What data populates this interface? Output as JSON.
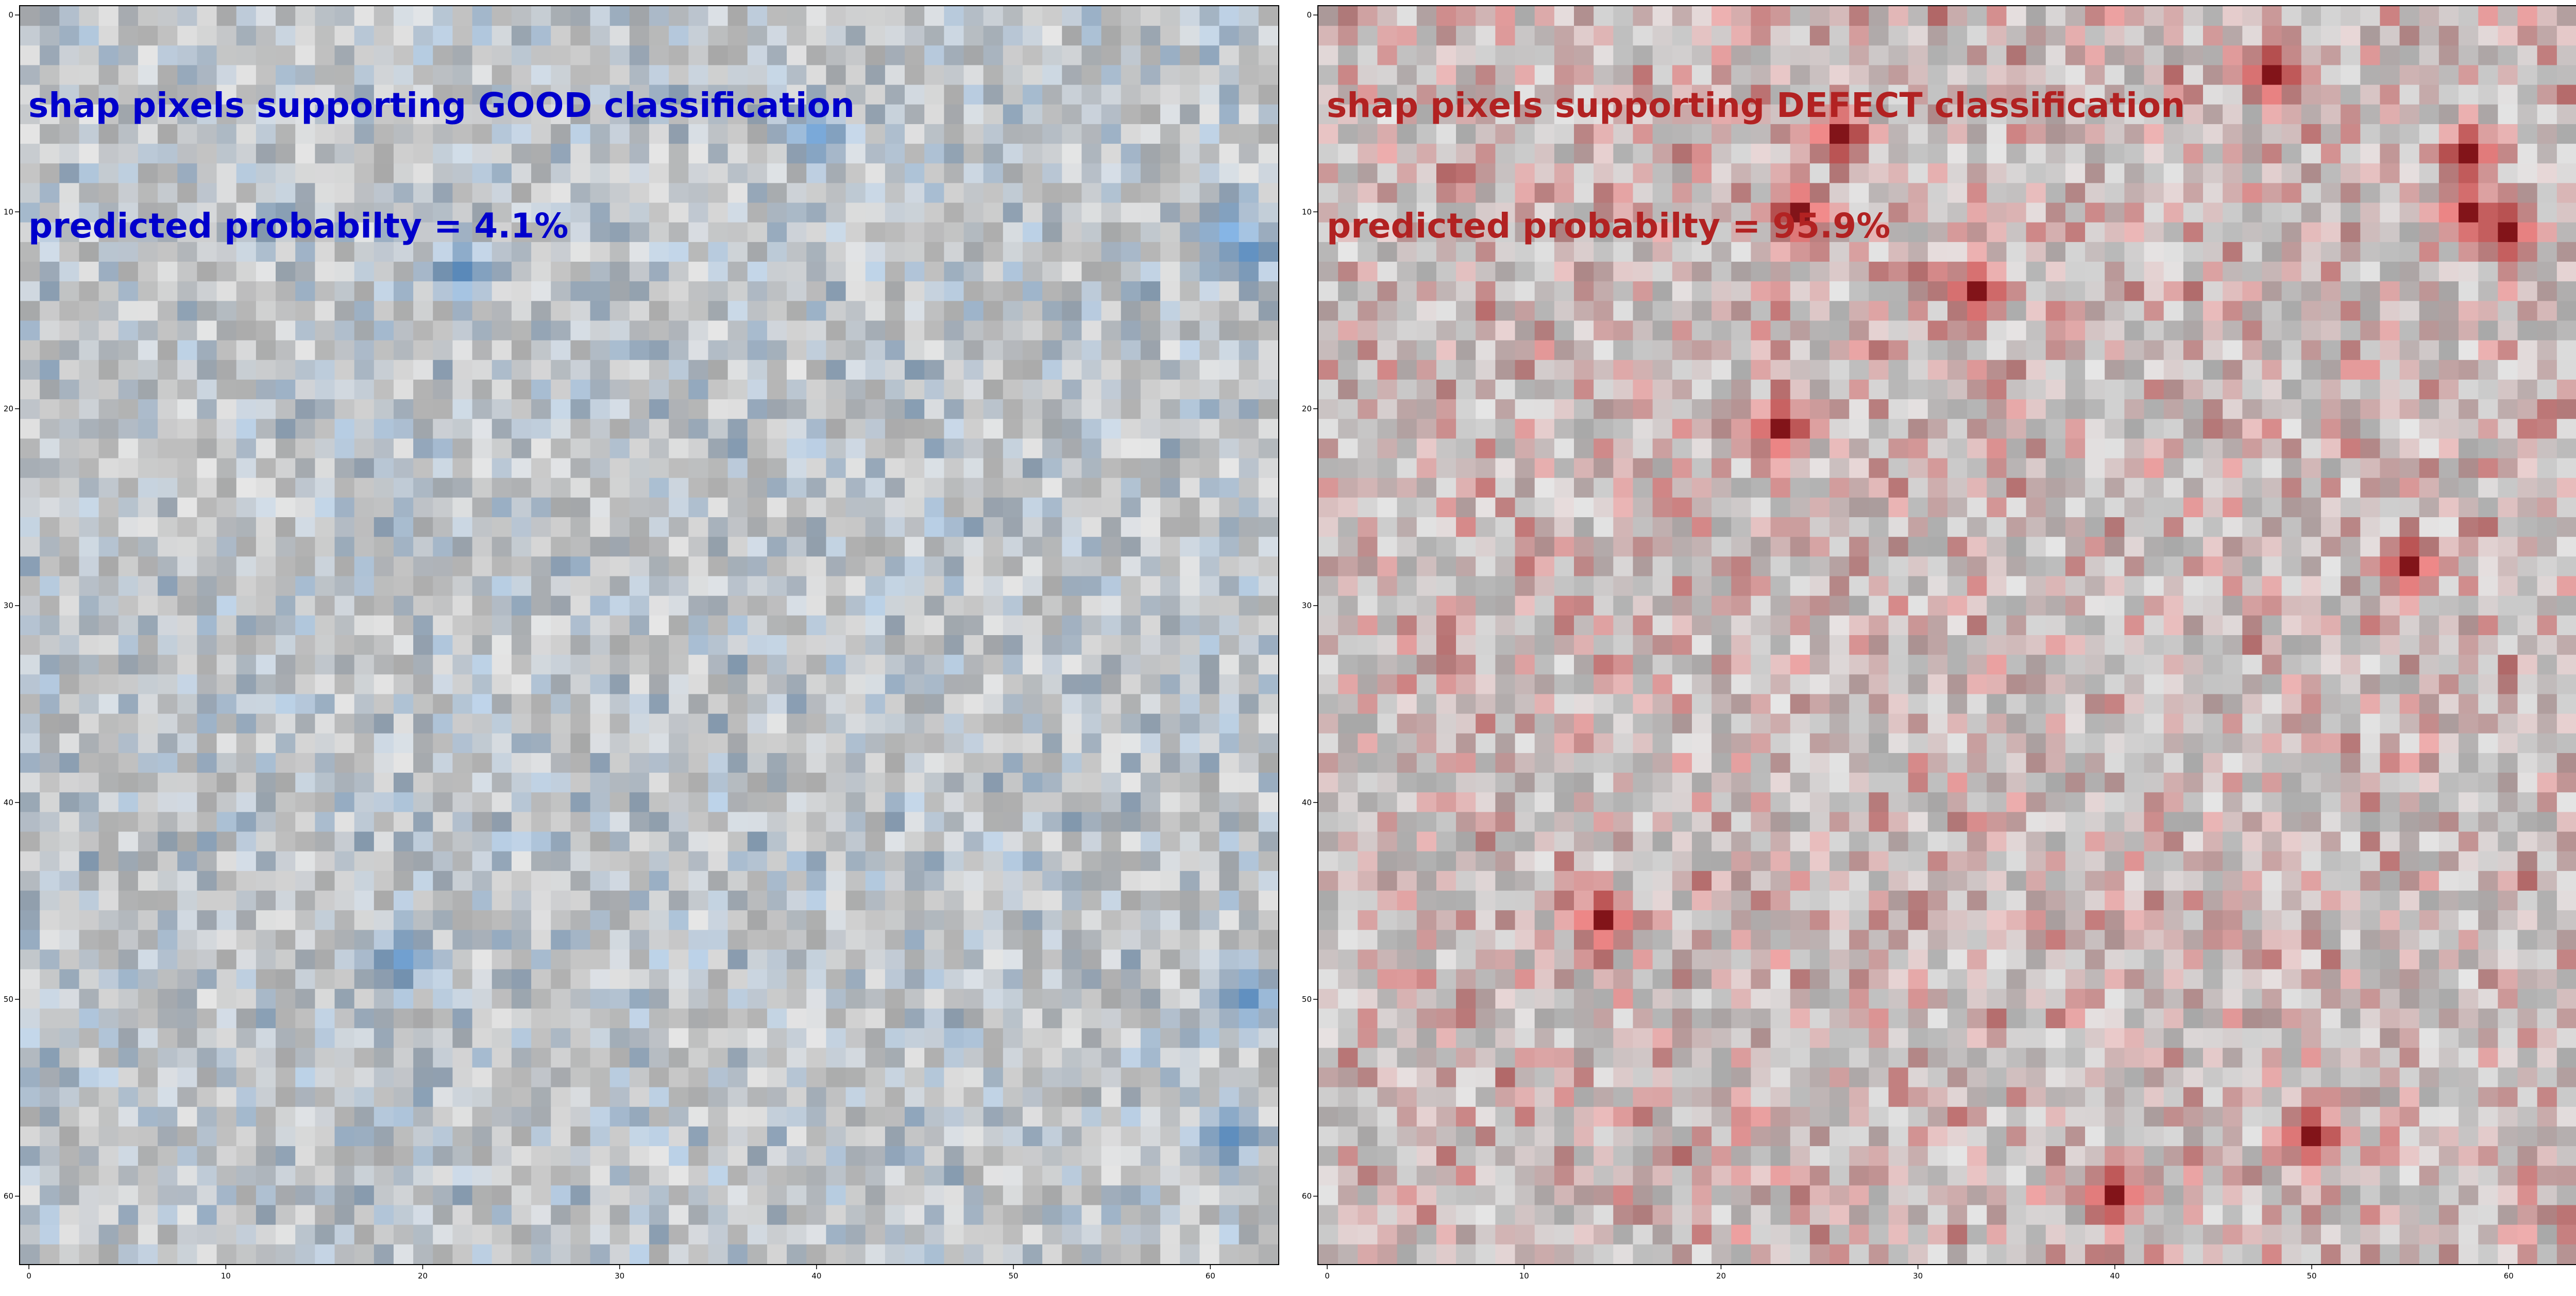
{
  "chart_data": [
    {
      "type": "heatmap",
      "panel": "good",
      "title_line1": "shap pixels supporting GOOD classification",
      "title_line2": "predicted probabilty = 4.1%",
      "title_color": "#0000cc",
      "colormap": "blues_overlay",
      "grid_size": 64,
      "xticks": [
        0,
        10,
        20,
        30,
        40,
        50,
        60
      ],
      "yticks": [
        0,
        10,
        20,
        30,
        40,
        50,
        60
      ],
      "hotspots": [
        [
          61,
          11
        ],
        [
          62,
          12
        ],
        [
          22,
          13
        ],
        [
          40,
          6
        ],
        [
          62,
          50
        ],
        [
          61,
          57
        ],
        [
          19,
          48
        ]
      ]
    },
    {
      "type": "heatmap",
      "panel": "defect",
      "title_line1": "shap pixels supporting DEFECT classification",
      "title_line2": "predicted probabilty = 95.9%",
      "title_color": "#b22222",
      "colormap": "reds_overlay",
      "grid_size": 64,
      "xticks": [
        0,
        10,
        20,
        30,
        40,
        50,
        60
      ],
      "yticks": [
        0,
        10,
        20,
        30,
        40,
        50,
        60
      ],
      "hotspots": [
        [
          58,
          10
        ],
        [
          58,
          7
        ],
        [
          60,
          11
        ],
        [
          48,
          3
        ],
        [
          26,
          6
        ],
        [
          24,
          10
        ],
        [
          23,
          21
        ],
        [
          40,
          60
        ],
        [
          50,
          57
        ],
        [
          33,
          14
        ],
        [
          55,
          28
        ],
        [
          14,
          46
        ]
      ]
    }
  ]
}
